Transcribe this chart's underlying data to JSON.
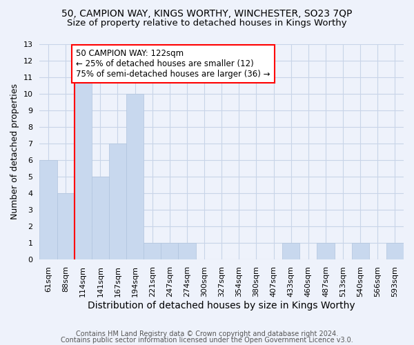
{
  "title_line1": "50, CAMPION WAY, KINGS WORTHY, WINCHESTER, SO23 7QP",
  "title_line2": "Size of property relative to detached houses in Kings Worthy",
  "xlabel": "Distribution of detached houses by size in Kings Worthy",
  "ylabel": "Number of detached properties",
  "bar_labels": [
    "61sqm",
    "88sqm",
    "114sqm",
    "141sqm",
    "167sqm",
    "194sqm",
    "221sqm",
    "247sqm",
    "274sqm",
    "300sqm",
    "327sqm",
    "354sqm",
    "380sqm",
    "407sqm",
    "433sqm",
    "460sqm",
    "487sqm",
    "513sqm",
    "540sqm",
    "566sqm",
    "593sqm"
  ],
  "bar_values": [
    6,
    4,
    11,
    5,
    7,
    10,
    1,
    1,
    1,
    0,
    0,
    0,
    0,
    0,
    1,
    0,
    1,
    0,
    1,
    0,
    1
  ],
  "bar_color": "#c8d8ee",
  "bar_edge_color": "#b0c4de",
  "vline_index": 2,
  "annotation_line1": "50 CAMPION WAY: 122sqm",
  "annotation_line2": "← 25% of detached houses are smaller (12)",
  "annotation_line3": "75% of semi-detached houses are larger (36) →",
  "annotation_box_facecolor": "white",
  "annotation_box_edgecolor": "red",
  "vline_color": "red",
  "ylim": [
    0,
    13
  ],
  "yticks": [
    0,
    1,
    2,
    3,
    4,
    5,
    6,
    7,
    8,
    9,
    10,
    11,
    12,
    13
  ],
  "grid_color": "#c8d4e8",
  "footer_line1": "Contains HM Land Registry data © Crown copyright and database right 2024.",
  "footer_line2": "Contains public sector information licensed under the Open Government Licence v3.0.",
  "bg_color": "#eef2fb",
  "title_fontsize": 10,
  "subtitle_fontsize": 9.5,
  "ylabel_fontsize": 9,
  "xlabel_fontsize": 10,
  "tick_fontsize": 8,
  "annotation_fontsize": 8.5,
  "footer_fontsize": 7
}
